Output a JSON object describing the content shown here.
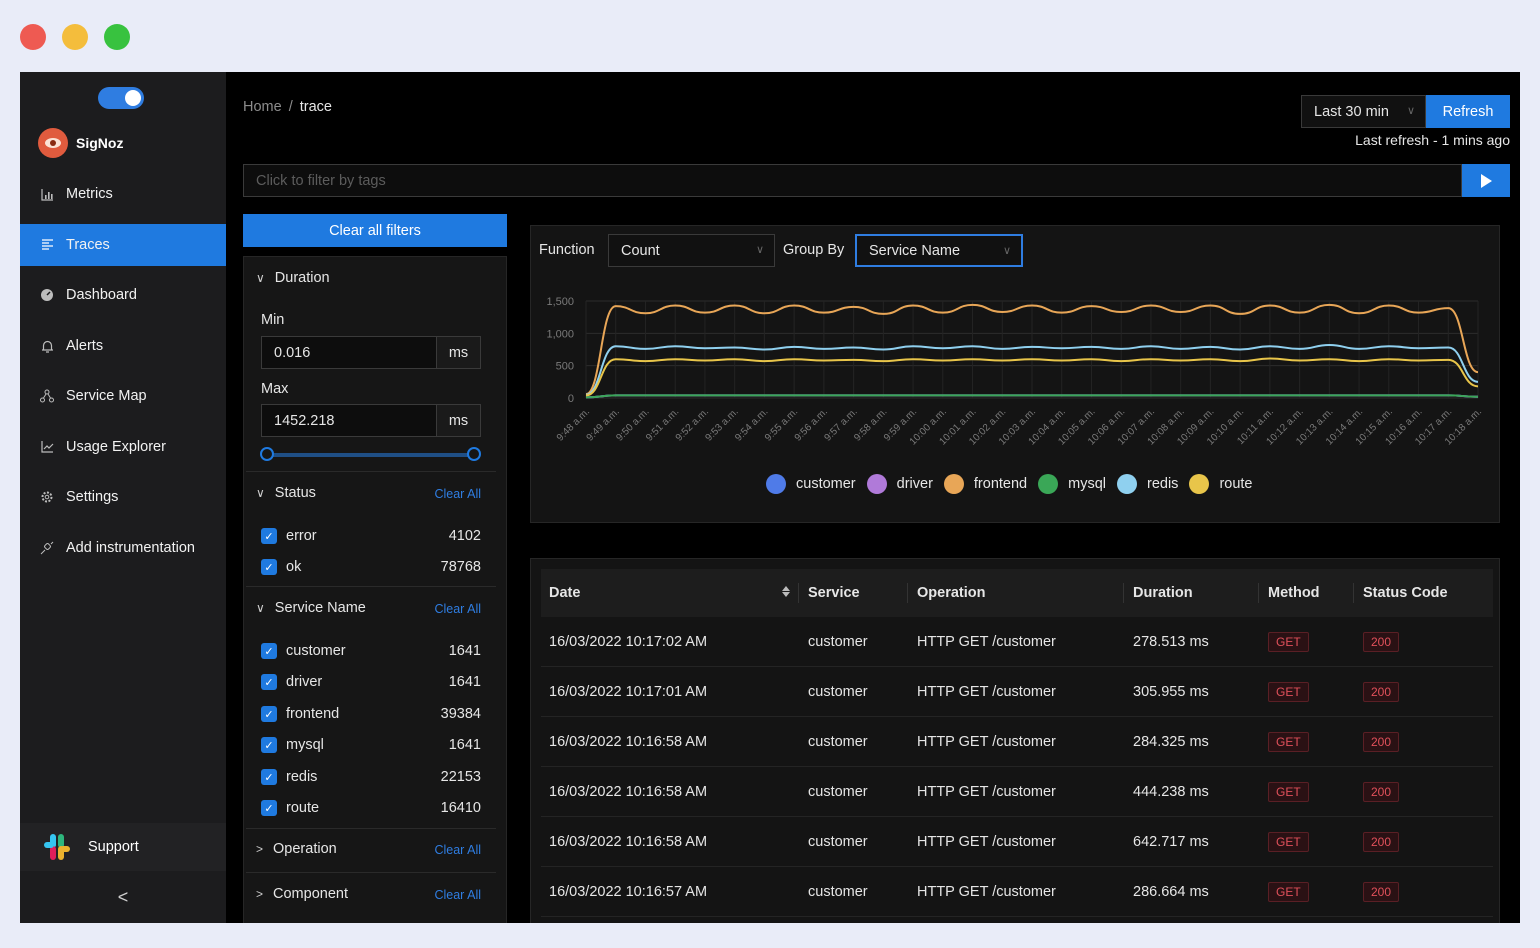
{
  "app": {
    "name": "SigNoz"
  },
  "sidebar": {
    "items": [
      {
        "label": "Metrics",
        "icon": "bar-chart-icon",
        "active": false
      },
      {
        "label": "Traces",
        "icon": "align-left-icon",
        "active": true
      },
      {
        "label": "Dashboard",
        "icon": "dashboard-icon",
        "active": false
      },
      {
        "label": "Alerts",
        "icon": "bell-icon",
        "active": false
      },
      {
        "label": "Service Map",
        "icon": "deployment-unit-icon",
        "active": false
      },
      {
        "label": "Usage Explorer",
        "icon": "line-chart-icon",
        "active": false
      },
      {
        "label": "Settings",
        "icon": "gear-icon",
        "active": false
      },
      {
        "label": "Add instrumentation",
        "icon": "api-icon",
        "active": false
      }
    ],
    "support_label": "Support",
    "collapse_glyph": "<"
  },
  "header": {
    "breadcrumb": {
      "home": "Home",
      "separator": "/",
      "current": "trace"
    },
    "time_range": "Last 30 min",
    "refresh_label": "Refresh",
    "last_refresh": "Last refresh - 1 mins ago"
  },
  "tag_filter": {
    "placeholder": "Click to filter by tags"
  },
  "filters": {
    "clear_all_label": "Clear all filters",
    "clear_link": "Clear All",
    "duration": {
      "title": "Duration",
      "min_label": "Min",
      "min_value": "0.016",
      "max_label": "Max",
      "max_value": "1452.218",
      "unit": "ms"
    },
    "status": {
      "title": "Status",
      "options": [
        {
          "label": "error",
          "count": "4102",
          "checked": true
        },
        {
          "label": "ok",
          "count": "78768",
          "checked": true
        }
      ]
    },
    "service_name": {
      "title": "Service Name",
      "options": [
        {
          "label": "customer",
          "count": "1641",
          "checked": true
        },
        {
          "label": "driver",
          "count": "1641",
          "checked": true
        },
        {
          "label": "frontend",
          "count": "39384",
          "checked": true
        },
        {
          "label": "mysql",
          "count": "1641",
          "checked": true
        },
        {
          "label": "redis",
          "count": "22153",
          "checked": true
        },
        {
          "label": "route",
          "count": "16410",
          "checked": true
        }
      ]
    },
    "operation": {
      "title": "Operation"
    },
    "component": {
      "title": "Component"
    }
  },
  "chart_controls": {
    "function_label": "Function",
    "function_value": "Count",
    "group_by_label": "Group By",
    "group_by_value": "Service Name"
  },
  "chart_data": {
    "type": "line",
    "x": [
      "9:48 a.m.",
      "9:49 a.m.",
      "9:50 a.m.",
      "9:51 a.m.",
      "9:52 a.m.",
      "9:53 a.m.",
      "9:54 a.m.",
      "9:55 a.m.",
      "9:56 a.m.",
      "9:57 a.m.",
      "9:58 a.m.",
      "9:59 a.m.",
      "10:00 a.m.",
      "10:01 a.m.",
      "10:02 a.m.",
      "10:03 a.m.",
      "10:04 a.m.",
      "10:05 a.m.",
      "10:06 a.m.",
      "10:07 a.m.",
      "10:08 a.m.",
      "10:09 a.m.",
      "10:10 a.m.",
      "10:11 a.m.",
      "10:12 a.m.",
      "10:13 a.m.",
      "10:14 a.m.",
      "10:15 a.m.",
      "10:16 a.m.",
      "10:17 a.m.",
      "10:18 a.m."
    ],
    "yticks": [
      "1,500",
      "1,000",
      "500",
      "0"
    ],
    "ylim": [
      0,
      1500
    ],
    "series": [
      {
        "name": "customer",
        "color": "#4f7be8",
        "values": [
          10,
          40,
          40,
          40,
          40,
          40,
          40,
          40,
          40,
          40,
          40,
          40,
          40,
          40,
          40,
          40,
          40,
          40,
          40,
          40,
          40,
          40,
          40,
          40,
          40,
          40,
          40,
          40,
          40,
          40,
          20
        ]
      },
      {
        "name": "driver",
        "color": "#b07ad9",
        "values": [
          10,
          40,
          40,
          40,
          40,
          40,
          40,
          40,
          40,
          40,
          40,
          40,
          40,
          40,
          40,
          40,
          40,
          40,
          40,
          40,
          40,
          40,
          40,
          40,
          40,
          40,
          40,
          40,
          40,
          40,
          20
        ]
      },
      {
        "name": "frontend",
        "color": "#e8a657",
        "values": [
          60,
          1420,
          1310,
          1430,
          1320,
          1430,
          1310,
          1430,
          1320,
          1410,
          1300,
          1430,
          1320,
          1440,
          1330,
          1430,
          1320,
          1420,
          1330,
          1430,
          1330,
          1430,
          1300,
          1430,
          1320,
          1440,
          1310,
          1430,
          1320,
          1390,
          400
        ]
      },
      {
        "name": "mysql",
        "color": "#3aa757",
        "values": [
          10,
          40,
          40,
          40,
          40,
          40,
          40,
          40,
          40,
          40,
          40,
          40,
          40,
          40,
          40,
          40,
          40,
          40,
          40,
          40,
          40,
          40,
          40,
          40,
          40,
          40,
          40,
          40,
          40,
          40,
          20
        ]
      },
      {
        "name": "redis",
        "color": "#8fd0ef",
        "values": [
          50,
          800,
          760,
          800,
          770,
          780,
          750,
          790,
          760,
          780,
          750,
          800,
          770,
          800,
          760,
          790,
          770,
          790,
          760,
          800,
          760,
          790,
          750,
          800,
          760,
          820,
          760,
          800,
          770,
          780,
          250
        ]
      },
      {
        "name": "route",
        "color": "#e8c54a",
        "values": [
          40,
          600,
          570,
          600,
          580,
          600,
          570,
          600,
          580,
          590,
          570,
          600,
          580,
          600,
          580,
          600,
          580,
          600,
          570,
          600,
          580,
          600,
          570,
          610,
          580,
          600,
          570,
          600,
          580,
          590,
          180
        ]
      }
    ]
  },
  "table": {
    "columns": [
      "Date",
      "Service",
      "Operation",
      "Duration",
      "Method",
      "Status Code"
    ],
    "rows": [
      {
        "date": "16/03/2022 10:17:02 AM",
        "service": "customer",
        "operation": "HTTP GET /customer",
        "duration": "278.513 ms",
        "method": "GET",
        "status": "200"
      },
      {
        "date": "16/03/2022 10:17:01 AM",
        "service": "customer",
        "operation": "HTTP GET /customer",
        "duration": "305.955 ms",
        "method": "GET",
        "status": "200"
      },
      {
        "date": "16/03/2022 10:16:58 AM",
        "service": "customer",
        "operation": "HTTP GET /customer",
        "duration": "284.325 ms",
        "method": "GET",
        "status": "200"
      },
      {
        "date": "16/03/2022 10:16:58 AM",
        "service": "customer",
        "operation": "HTTP GET /customer",
        "duration": "444.238 ms",
        "method": "GET",
        "status": "200"
      },
      {
        "date": "16/03/2022 10:16:58 AM",
        "service": "customer",
        "operation": "HTTP GET /customer",
        "duration": "642.717 ms",
        "method": "GET",
        "status": "200"
      },
      {
        "date": "16/03/2022 10:16:57 AM",
        "service": "customer",
        "operation": "HTTP GET /customer",
        "duration": "286.664 ms",
        "method": "GET",
        "status": "200"
      }
    ]
  }
}
